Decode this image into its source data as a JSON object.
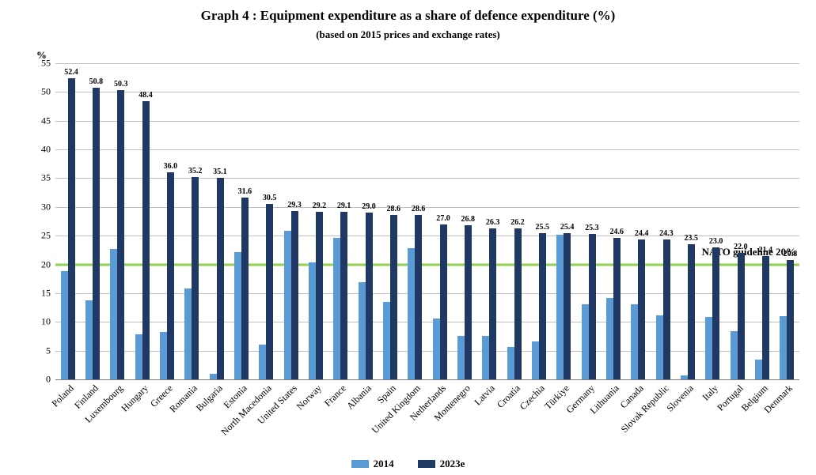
{
  "chart": {
    "title": "Graph 4 : Equipment expenditure as a share of defence expenditure (%)",
    "title_fontsize": 17,
    "subtitle": "(based on 2015 prices and exchange rates)",
    "subtitle_fontsize": 13,
    "y_unit_label": "%",
    "y_unit_fontsize": 13,
    "type": "bar",
    "ylim": [
      0,
      55
    ],
    "y_ticks": [
      0,
      5,
      10,
      15,
      20,
      25,
      30,
      35,
      40,
      45,
      50,
      55
    ],
    "tick_fontsize": 12,
    "x_label_fontsize": 12,
    "value_label_fontsize": 10,
    "background_color": "#ffffff",
    "grid_color": "#bfbfbf",
    "axis_color": "#808080",
    "series": [
      {
        "name": "2014",
        "color": "#5b9bd5"
      },
      {
        "name": "2023e",
        "color": "#1f3864"
      }
    ],
    "guideline": {
      "value": 20,
      "label": "NATO guideline 20%",
      "label_fontsize": 13,
      "color": "#92d050"
    },
    "categories": [
      {
        "label": "Poland",
        "v2014": 18.8,
        "v2023": 52.4,
        "show_label": "52.4"
      },
      {
        "label": "Finland",
        "v2014": 13.8,
        "v2023": 50.8,
        "show_label": "50.8"
      },
      {
        "label": "Luxembourg",
        "v2014": 22.7,
        "v2023": 50.3,
        "show_label": "50.3"
      },
      {
        "label": "Hungary",
        "v2014": 7.8,
        "v2023": 48.4,
        "show_label": "48.4"
      },
      {
        "label": "Greece",
        "v2014": 8.2,
        "v2023": 36.0,
        "show_label": "36.0"
      },
      {
        "label": "Romania",
        "v2014": 15.8,
        "v2023": 35.2,
        "show_label": "35.2"
      },
      {
        "label": "Bulgaria",
        "v2014": 1.0,
        "v2023": 35.1,
        "show_label": "35.1"
      },
      {
        "label": "Estonia",
        "v2014": 22.2,
        "v2023": 31.6,
        "show_label": "31.6"
      },
      {
        "label": "North Macedonia",
        "v2014": 6.0,
        "v2023": 30.5,
        "show_label": "30.5"
      },
      {
        "label": "United States",
        "v2014": 25.9,
        "v2023": 29.3,
        "show_label": "29.3"
      },
      {
        "label": "Norway",
        "v2014": 20.3,
        "v2023": 29.2,
        "show_label": "29.2"
      },
      {
        "label": "France",
        "v2014": 24.6,
        "v2023": 29.1,
        "show_label": "29.1"
      },
      {
        "label": "Albania",
        "v2014": 16.9,
        "v2023": 29.0,
        "show_label": "29.0"
      },
      {
        "label": "Spain",
        "v2014": 13.5,
        "v2023": 28.6,
        "show_label": "28.6"
      },
      {
        "label": "United Kingdom",
        "v2014": 22.8,
        "v2023": 28.6,
        "show_label": "28.6"
      },
      {
        "label": "Netherlands",
        "v2014": 10.6,
        "v2023": 27.0,
        "show_label": "27.0"
      },
      {
        "label": "Montenegro",
        "v2014": 7.5,
        "v2023": 26.8,
        "show_label": "26.8"
      },
      {
        "label": "Latvia",
        "v2014": 7.6,
        "v2023": 26.3,
        "show_label": "26.3"
      },
      {
        "label": "Croatia",
        "v2014": 5.6,
        "v2023": 26.2,
        "show_label": "26.2"
      },
      {
        "label": "Czechia",
        "v2014": 6.6,
        "v2023": 25.5,
        "show_label": "25.5"
      },
      {
        "label": "Türkiye",
        "v2014": 25.1,
        "v2023": 25.4,
        "show_label": "25.4"
      },
      {
        "label": "Germany",
        "v2014": 13.0,
        "v2023": 25.3,
        "show_label": "25.3"
      },
      {
        "label": "Lithuania",
        "v2014": 14.1,
        "v2023": 24.6,
        "show_label": "24.6"
      },
      {
        "label": "Canada",
        "v2014": 13.0,
        "v2023": 24.4,
        "show_label": "24.4"
      },
      {
        "label": "Slovak Republic",
        "v2014": 11.1,
        "v2023": 24.3,
        "show_label": "24.3"
      },
      {
        "label": "Slovenia",
        "v2014": 0.7,
        "v2023": 23.5,
        "show_label": "23.5"
      },
      {
        "label": "Italy",
        "v2014": 10.9,
        "v2023": 23.0,
        "show_label": "23.0"
      },
      {
        "label": "Portugal",
        "v2014": 8.4,
        "v2023": 22.0,
        "show_label": "22.0"
      },
      {
        "label": "Belgium",
        "v2014": 3.5,
        "v2023": 21.4,
        "show_label": "21.4"
      },
      {
        "label": "Denmark",
        "v2014": 11.0,
        "v2023": 20.8,
        "show_label": "20.8"
      }
    ],
    "legend": {
      "items": [
        {
          "label": "2014",
          "color": "#5b9bd5"
        },
        {
          "label": "2023e",
          "color": "#1f3864"
        }
      ],
      "fontsize": 13
    }
  }
}
